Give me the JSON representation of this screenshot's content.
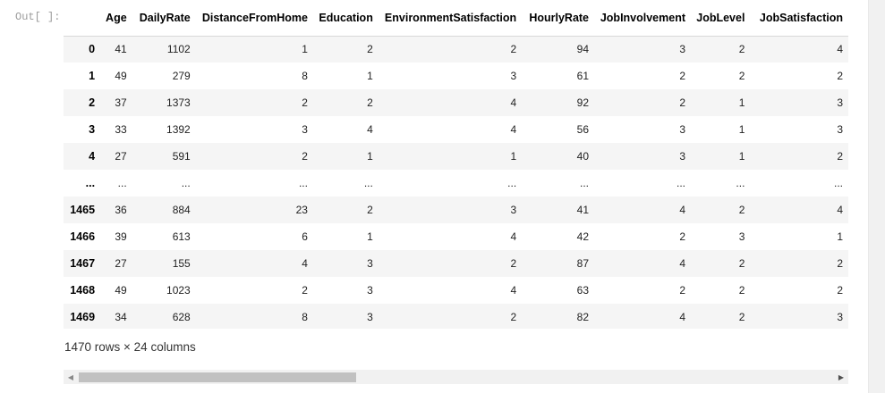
{
  "prompt": "Out[ ]:",
  "columns": [
    "",
    "Age",
    "DailyRate",
    "DistanceFromHome",
    "Education",
    "EnvironmentSatisfaction",
    "HourlyRate",
    "JobInvolvement",
    "JobLevel",
    "JobSatisfaction"
  ],
  "rows": [
    [
      "0",
      "41",
      "1102",
      "1",
      "2",
      "2",
      "94",
      "3",
      "2",
      "4"
    ],
    [
      "1",
      "49",
      "279",
      "8",
      "1",
      "3",
      "61",
      "2",
      "2",
      "2"
    ],
    [
      "2",
      "37",
      "1373",
      "2",
      "2",
      "4",
      "92",
      "2",
      "1",
      "3"
    ],
    [
      "3",
      "33",
      "1392",
      "3",
      "4",
      "4",
      "56",
      "3",
      "1",
      "3"
    ],
    [
      "4",
      "27",
      "591",
      "2",
      "1",
      "1",
      "40",
      "3",
      "1",
      "2"
    ],
    [
      "...",
      "...",
      "...",
      "...",
      "...",
      "...",
      "...",
      "...",
      "...",
      "..."
    ],
    [
      "1465",
      "36",
      "884",
      "23",
      "2",
      "3",
      "41",
      "4",
      "2",
      "4"
    ],
    [
      "1466",
      "39",
      "613",
      "6",
      "1",
      "4",
      "42",
      "2",
      "3",
      "1"
    ],
    [
      "1467",
      "27",
      "155",
      "4",
      "3",
      "2",
      "87",
      "4",
      "2",
      "2"
    ],
    [
      "1468",
      "49",
      "1023",
      "2",
      "3",
      "4",
      "63",
      "2",
      "2",
      "2"
    ],
    [
      "1469",
      "34",
      "628",
      "8",
      "3",
      "2",
      "82",
      "4",
      "2",
      "3"
    ]
  ],
  "summary": "1470 rows × 24 columns",
  "icons": {
    "scroll_left": "triangle-left",
    "scroll_right": "triangle-right"
  }
}
